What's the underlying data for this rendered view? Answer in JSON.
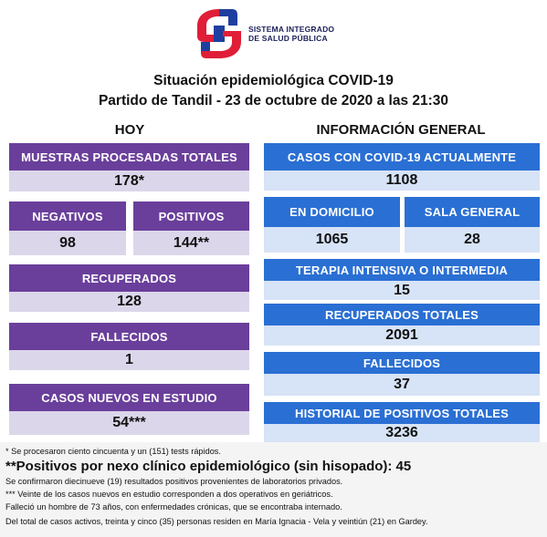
{
  "logo": {
    "line1": "SISTEMA INTEGRADO",
    "line2": "DE SALUD PÚBLICA",
    "icon": "sisp-logo-icon",
    "colors": {
      "red": "#e01e37",
      "blue": "#1f3fa0"
    }
  },
  "header": {
    "title": "Situación epidemiológica COVID-19",
    "subtitle": "Partido de Tandil - 23 de octubre de 2020 a las 21:30"
  },
  "hoy": {
    "heading": "HOY",
    "muestras": {
      "label": "MUESTRAS PROCESADAS TOTALES",
      "value": "178*"
    },
    "negativos": {
      "label": "NEGATIVOS",
      "value": "98"
    },
    "positivos": {
      "label": "POSITIVOS",
      "value": "144**"
    },
    "recuperados": {
      "label": "RECUPERADOS",
      "value": "128"
    },
    "fallecidos": {
      "label": "FALLECIDOS",
      "value": "1"
    },
    "casos_nuevos": {
      "label": "CASOS NUEVOS EN ESTUDIO",
      "value": "54***"
    }
  },
  "general": {
    "heading": "INFORMACIÓN GENERAL",
    "casos_actuales": {
      "label": "CASOS CON COVID-19 ACTUALMENTE",
      "value": "1108"
    },
    "domicilio": {
      "label": "EN DOMICILIO",
      "value": "1065"
    },
    "sala_general": {
      "label": "SALA GENERAL",
      "value": "28"
    },
    "terapia": {
      "label": "TERAPIA INTENSIVA O INTERMEDIA",
      "value": "15"
    },
    "recuperados_totales": {
      "label": "RECUPERADOS TOTALES",
      "value": "2091"
    },
    "fallecidos": {
      "label": "FALLECIDOS",
      "value": "37"
    },
    "historial": {
      "label": "HISTORIAL DE POSITIVOS TOTALES",
      "value": "3236"
    }
  },
  "footnotes": {
    "note1": "* Se procesaron ciento cincuenta y un (151) tests rápidos.",
    "big": "**Positivos por nexo clínico epidemiológico (sin hisopado): 45",
    "note2": "Se confirmaron diecinueve (19) resultados positivos provenientes de laboratorios privados.",
    "note3": "*** Veinte de los casos nuevos en estudio corresponden a dos operativos en geriátricos.",
    "note4": "Falleció un hombre de 73 años, con enfermedades crónicas, que se encontraba internado.",
    "note5": "Del total de casos activos, treinta y cinco (35) personas residen en María Ignacia - Vela y veintiún (21) en Gardey."
  },
  "colors": {
    "purple": "#6a3f9b",
    "purple_light": "#dcd6ea",
    "blue": "#2a6fd3",
    "blue_light": "#d7e3f6"
  }
}
